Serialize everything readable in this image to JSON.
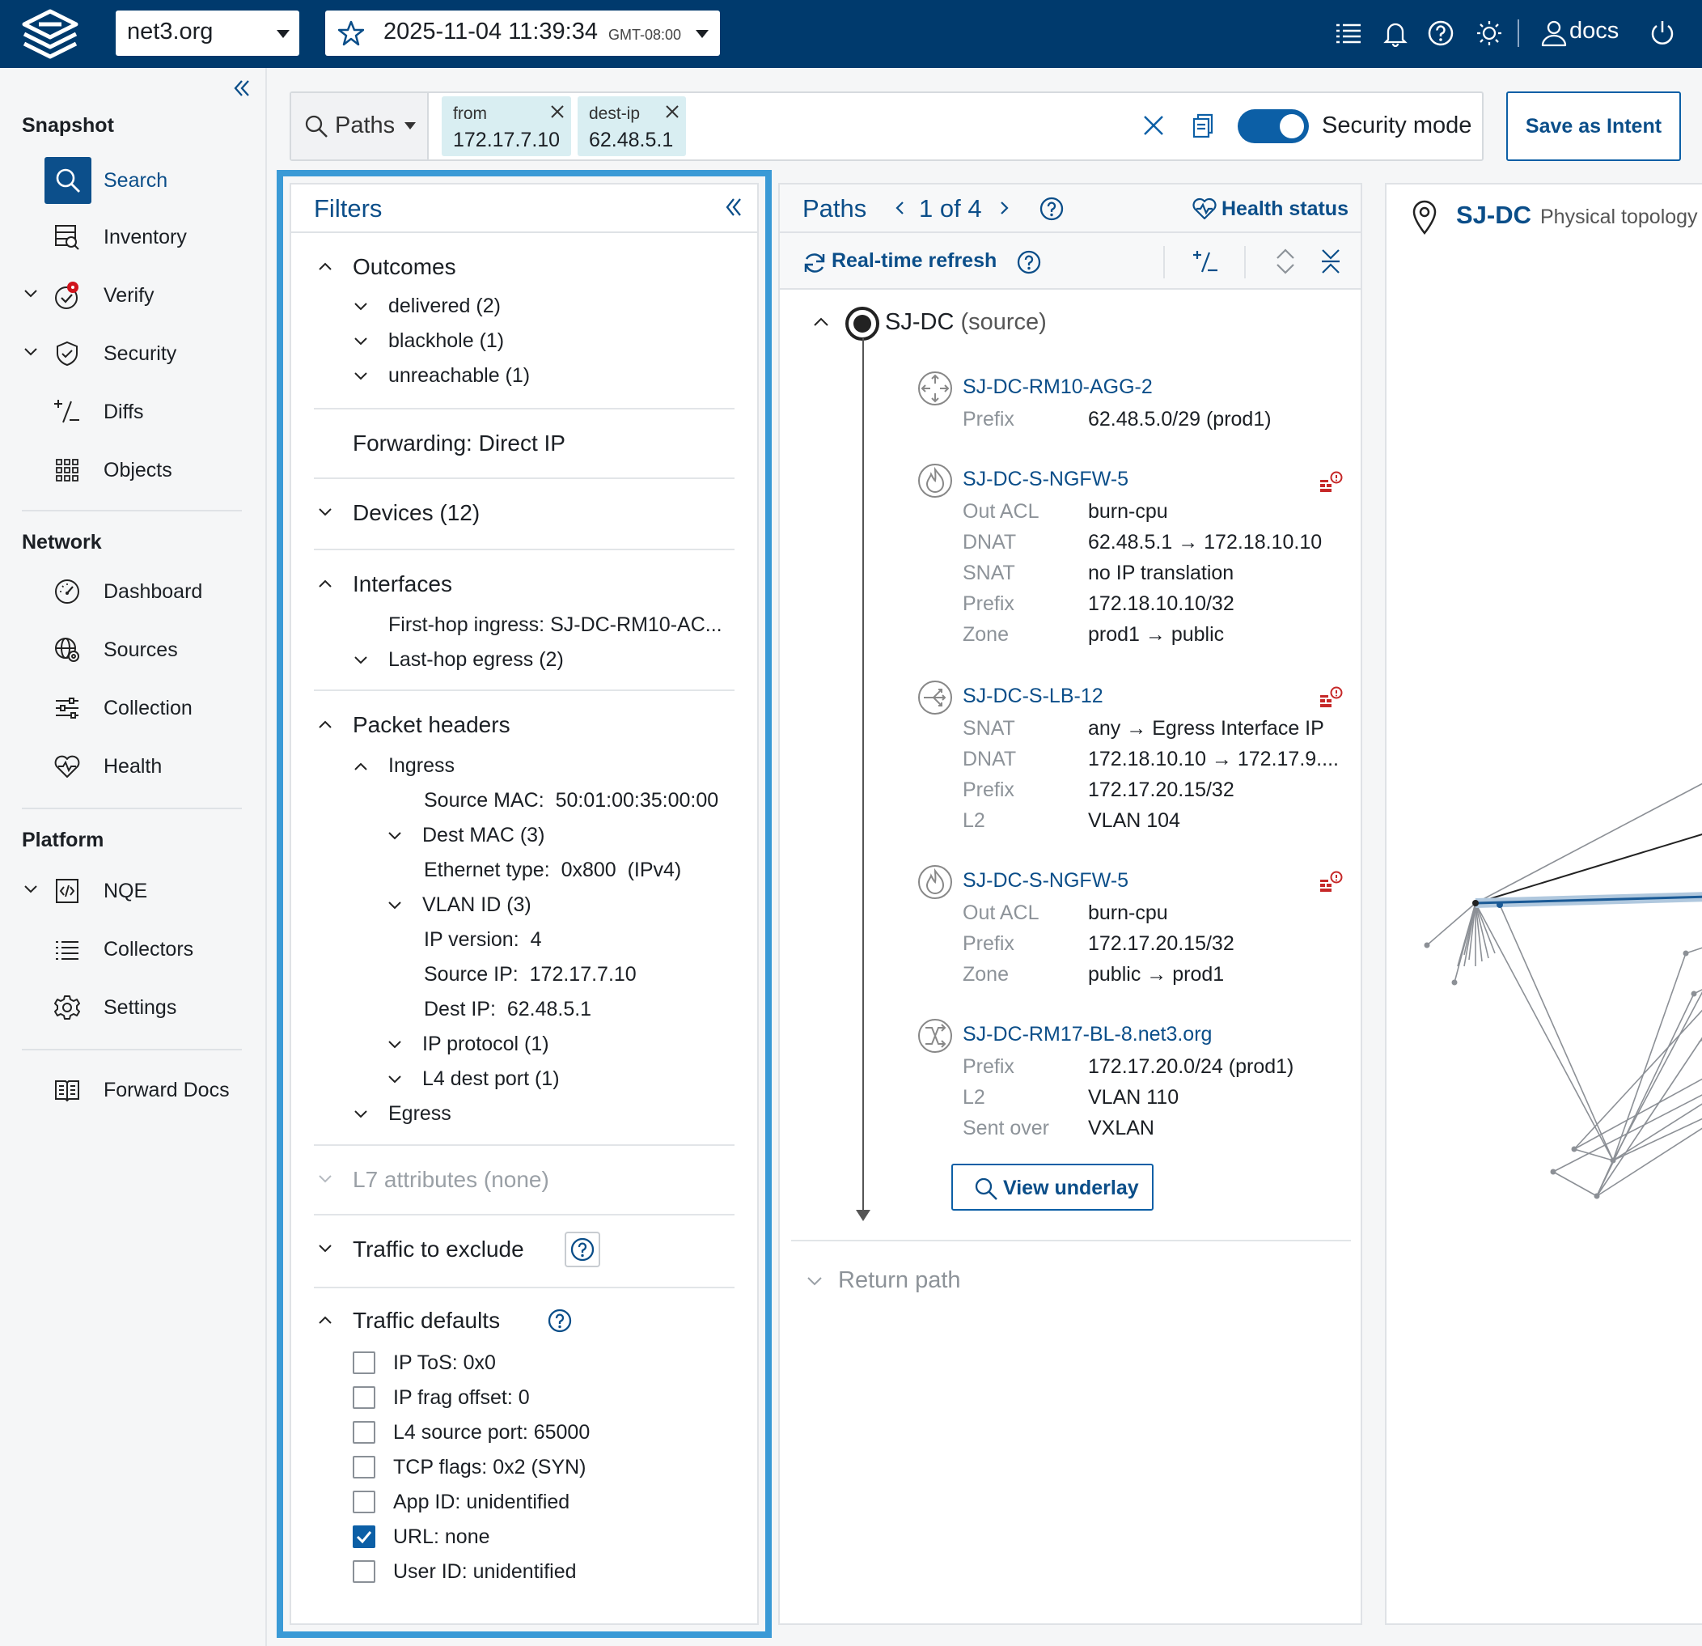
{
  "topbar": {
    "org": "net3.org",
    "snapshot_date": "2025-11-04",
    "snapshot_time": "11:39:34",
    "snapshot_tz": "GMT-08:00",
    "user": "docs"
  },
  "sidebar": {
    "sections": {
      "snapshot": "Snapshot",
      "network": "Network",
      "platform": "Platform"
    },
    "items": {
      "search": "Search",
      "inventory": "Inventory",
      "verify": "Verify",
      "security": "Security",
      "diffs": "Diffs",
      "objects": "Objects",
      "dashboard": "Dashboard",
      "sources": "Sources",
      "collection": "Collection",
      "health": "Health",
      "nqe": "NQE",
      "collectors": "Collectors",
      "settings": "Settings",
      "forward_docs": "Forward Docs"
    },
    "active": "search",
    "verify_badge_color": "#d0131c"
  },
  "query": {
    "mode": "Paths",
    "chips": [
      {
        "key": "from",
        "value": "172.17.7.10"
      },
      {
        "key": "dest-ip",
        "value": "62.48.5.1"
      }
    ],
    "security_mode_label": "Security mode",
    "security_mode_on": true,
    "save_label": "Save as Intent"
  },
  "filters": {
    "title": "Filters",
    "outcomes": {
      "label": "Outcomes",
      "items": [
        "delivered (2)",
        "blackhole (1)",
        "unreachable (1)"
      ]
    },
    "forwarding": {
      "label": "Forwarding:",
      "value": "Direct IP"
    },
    "devices": "Devices (12)",
    "interfaces": {
      "label": "Interfaces",
      "first_hop_label": "First-hop ingress:",
      "first_hop_value": "SJ-DC-RM10-AC...",
      "last_hop": "Last-hop egress (2)"
    },
    "packet_headers": {
      "label": "Packet headers",
      "ingress": "Ingress",
      "source_mac_label": "Source MAC:",
      "source_mac_value": "50:01:00:35:00:00",
      "dest_mac": "Dest MAC (3)",
      "ethertype_label": "Ethernet type:",
      "ethertype_value": "0x800  (IPv4)",
      "vlan": "VLAN ID (3)",
      "ip_version_label": "IP version:",
      "ip_version_value": "4",
      "source_ip_label": "Source IP:",
      "source_ip_value": "172.17.7.10",
      "dest_ip_label": "Dest IP:",
      "dest_ip_value": "62.48.5.1",
      "ip_protocol": "IP protocol (1)",
      "l4_dest": "L4 dest port (1)",
      "egress": "Egress"
    },
    "l7": "L7 attributes (none)",
    "exclude": "Traffic to exclude",
    "defaults": {
      "label": "Traffic defaults",
      "items": [
        {
          "label": "IP ToS: 0x0",
          "checked": false
        },
        {
          "label": "IP frag offset: 0",
          "checked": false
        },
        {
          "label": "L4 source port: 65000",
          "checked": false
        },
        {
          "label": "TCP flags: 0x2 (SYN)",
          "checked": false
        },
        {
          "label": "App ID: unidentified",
          "checked": false
        },
        {
          "label": "URL: none",
          "checked": true
        },
        {
          "label": "User ID: unidentified",
          "checked": false
        }
      ]
    }
  },
  "paths": {
    "title": "Paths",
    "pager": "1 of 4",
    "health_label": "Health status",
    "refresh_label": "Real-time refresh",
    "source_name": "SJ-DC",
    "source_suffix": "(source)",
    "hops": [
      {
        "name": "SJ-DC-RM10-AGG-2",
        "icon": "router-icon",
        "alert": false,
        "rows": [
          {
            "k": "Prefix",
            "v": "62.48.5.0/29 (prod1)"
          }
        ]
      },
      {
        "name": "SJ-DC-S-NGFW-5",
        "icon": "firewall-icon",
        "alert": true,
        "rows": [
          {
            "k": "Out ACL",
            "v": "burn-cpu"
          },
          {
            "k": "DNAT",
            "v": "62.48.5.1 → 172.18.10.10"
          },
          {
            "k": "SNAT",
            "v": "no IP translation"
          },
          {
            "k": "Prefix",
            "v": "172.18.10.10/32"
          },
          {
            "k": "Zone",
            "v": "prod1 → public"
          }
        ]
      },
      {
        "name": "SJ-DC-S-LB-12",
        "icon": "load-balancer-icon",
        "alert": true,
        "rows": [
          {
            "k": "SNAT",
            "v": "any → Egress Interface IP"
          },
          {
            "k": "DNAT",
            "v": "172.18.10.10 → 172.17.9...."
          },
          {
            "k": "Prefix",
            "v": "172.17.20.15/32"
          },
          {
            "k": "L2",
            "v": "VLAN 104"
          }
        ]
      },
      {
        "name": "SJ-DC-S-NGFW-5",
        "icon": "firewall-icon",
        "alert": true,
        "rows": [
          {
            "k": "Out ACL",
            "v": "burn-cpu"
          },
          {
            "k": "Prefix",
            "v": "172.17.20.15/32"
          },
          {
            "k": "Zone",
            "v": "public → prod1"
          }
        ]
      },
      {
        "name": "SJ-DC-RM17-BL-8.net3.org",
        "icon": "switch-icon",
        "alert": false,
        "rows": [
          {
            "k": "Prefix",
            "v": "172.17.20.0/24 (prod1)"
          },
          {
            "k": "L2",
            "v": "VLAN 110"
          },
          {
            "k": "Sent over",
            "v": "VXLAN"
          }
        ]
      }
    ],
    "view_underlay": "View underlay",
    "return_path": "Return path"
  },
  "topology": {
    "site": "SJ-DC",
    "subtitle": "Physical topology"
  }
}
